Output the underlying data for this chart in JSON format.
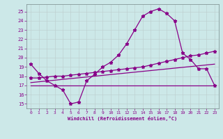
{
  "background_color": "#cce8e8",
  "line_color": "#880088",
  "grid_color": "#bbcccc",
  "xlabel": "Windchill (Refroidissement éolien,°C)",
  "xlim": [
    -0.5,
    23.5
  ],
  "ylim": [
    14.5,
    25.8
  ],
  "yticks": [
    15,
    16,
    17,
    18,
    19,
    20,
    21,
    22,
    23,
    24,
    25
  ],
  "xticks": [
    0,
    1,
    2,
    3,
    4,
    5,
    6,
    7,
    8,
    9,
    10,
    11,
    12,
    13,
    14,
    15,
    16,
    17,
    18,
    19,
    20,
    21,
    22,
    23
  ],
  "series1_marked": {
    "x": [
      0,
      1,
      2,
      3,
      4,
      5,
      6,
      7,
      8,
      9,
      10,
      11,
      12,
      13,
      14,
      15,
      16,
      17,
      18,
      19,
      20,
      21,
      22,
      23
    ],
    "y": [
      19.3,
      18.3,
      17.5,
      17.0,
      16.5,
      15.0,
      15.2,
      17.5,
      18.2,
      19.0,
      19.5,
      20.3,
      21.5,
      23.0,
      24.5,
      25.0,
      25.3,
      24.8,
      24.0,
      20.5,
      19.8,
      18.8,
      18.8,
      17.0
    ]
  },
  "series2_flat": {
    "x": [
      0,
      23
    ],
    "y": [
      17.0,
      17.0
    ]
  },
  "series3_slow": {
    "x": [
      0,
      23
    ],
    "y": [
      17.3,
      19.3
    ]
  },
  "series4_marked": {
    "x": [
      0,
      1,
      2,
      3,
      4,
      5,
      6,
      7,
      8,
      9,
      10,
      11,
      12,
      13,
      14,
      15,
      16,
      17,
      18,
      19,
      20,
      21,
      22,
      23
    ],
    "y": [
      17.8,
      17.8,
      17.9,
      18.0,
      18.0,
      18.1,
      18.2,
      18.3,
      18.4,
      18.5,
      18.6,
      18.7,
      18.8,
      18.9,
      19.0,
      19.2,
      19.4,
      19.6,
      19.8,
      20.0,
      20.2,
      20.3,
      20.5,
      20.7
    ]
  }
}
